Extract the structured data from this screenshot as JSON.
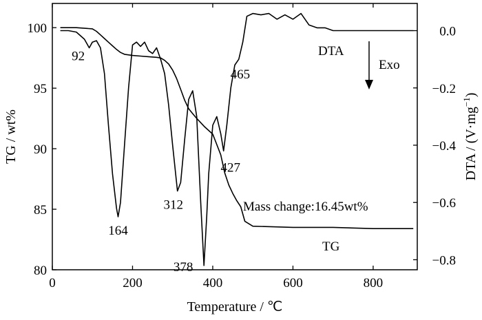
{
  "chart_data": {
    "type": "line",
    "title": "",
    "xlabel": "Temperature / ℃",
    "ylabel_left": "TG / wt%",
    "ylabel_right": "DTA / (V·mg",
    "ylabel_right_sup": "−1",
    "ylabel_right_end": ")",
    "xlim": [
      0,
      910
    ],
    "ylim_left": [
      80,
      102
    ],
    "ylim_right": [
      -0.835,
      0.095
    ],
    "grid": false,
    "x_ticks": [
      0,
      200,
      400,
      600,
      800
    ],
    "x_tick_labels": [
      "0",
      "200",
      "400",
      "600",
      "800"
    ],
    "left_ticks": [
      80,
      85,
      90,
      95,
      100
    ],
    "left_tick_labels": [
      "80",
      "85",
      "90",
      "95",
      "100"
    ],
    "right_ticks": [
      0.0,
      -0.2,
      -0.4,
      -0.6,
      -0.8
    ],
    "right_tick_labels": [
      "0.0",
      "−0.2",
      "−0.4",
      "−0.6",
      "−0.8"
    ],
    "series": [
      {
        "name": "TG",
        "axis": "left",
        "x": [
          20,
          60,
          100,
          110,
          120,
          130,
          140,
          150,
          160,
          170,
          180,
          200,
          220,
          240,
          260,
          270,
          280,
          290,
          300,
          310,
          320,
          330,
          340,
          350,
          360,
          380,
          400,
          420,
          430,
          440,
          450,
          460,
          470,
          480,
          500,
          600,
          700,
          800,
          900
        ],
        "y": [
          100.0,
          100.0,
          99.9,
          99.7,
          99.4,
          99.1,
          98.8,
          98.5,
          98.2,
          97.95,
          97.8,
          97.7,
          97.65,
          97.6,
          97.55,
          97.5,
          97.3,
          97.0,
          96.5,
          95.8,
          94.9,
          94.0,
          93.3,
          92.9,
          92.5,
          91.8,
          91.2,
          89.5,
          88.0,
          87.0,
          86.3,
          85.7,
          85.2,
          84.0,
          83.6,
          83.5,
          83.5,
          83.4,
          83.4
        ]
      },
      {
        "name": "DTA",
        "axis": "right",
        "x": [
          20,
          40,
          60,
          80,
          92,
          100,
          110,
          120,
          130,
          140,
          150,
          160,
          164,
          170,
          180,
          190,
          200,
          210,
          220,
          230,
          240,
          250,
          260,
          270,
          280,
          290,
          300,
          312,
          320,
          330,
          340,
          350,
          360,
          370,
          378,
          385,
          390,
          400,
          410,
          420,
          427,
          435,
          445,
          455,
          465,
          475,
          485,
          500,
          520,
          540,
          560,
          580,
          600,
          620,
          640,
          660,
          680,
          700,
          750,
          800,
          850,
          900
        ],
        "y": [
          0.0,
          0.0,
          -0.005,
          -0.03,
          -0.06,
          -0.04,
          -0.035,
          -0.06,
          -0.15,
          -0.33,
          -0.5,
          -0.62,
          -0.65,
          -0.6,
          -0.4,
          -0.2,
          -0.05,
          -0.04,
          -0.055,
          -0.04,
          -0.07,
          -0.08,
          -0.06,
          -0.1,
          -0.15,
          -0.26,
          -0.4,
          -0.56,
          -0.53,
          -0.38,
          -0.24,
          -0.21,
          -0.3,
          -0.6,
          -0.82,
          -0.65,
          -0.5,
          -0.33,
          -0.3,
          -0.36,
          -0.42,
          -0.33,
          -0.2,
          -0.12,
          -0.1,
          -0.04,
          0.05,
          0.06,
          0.055,
          0.06,
          0.04,
          0.055,
          0.04,
          0.06,
          0.02,
          0.01,
          0.01,
          0.0,
          0.0,
          0.0,
          0.0,
          0.0
        ]
      }
    ],
    "series_labels": {
      "dta": "DTA",
      "tg": "TG"
    },
    "exo_label": "Exo",
    "mass_change": "Mass change:16.45wt%",
    "peak_labels": [
      {
        "text": "92",
        "x": 92,
        "y": -0.06
      },
      {
        "text": "164",
        "x": 164,
        "y": -0.65
      },
      {
        "text": "312",
        "x": 312,
        "y": -0.56
      },
      {
        "text": "378",
        "x": 378,
        "y": -0.82
      },
      {
        "text": "427",
        "x": 427,
        "y": -0.42
      },
      {
        "text": "465",
        "x": 465,
        "y": -0.1
      }
    ]
  }
}
